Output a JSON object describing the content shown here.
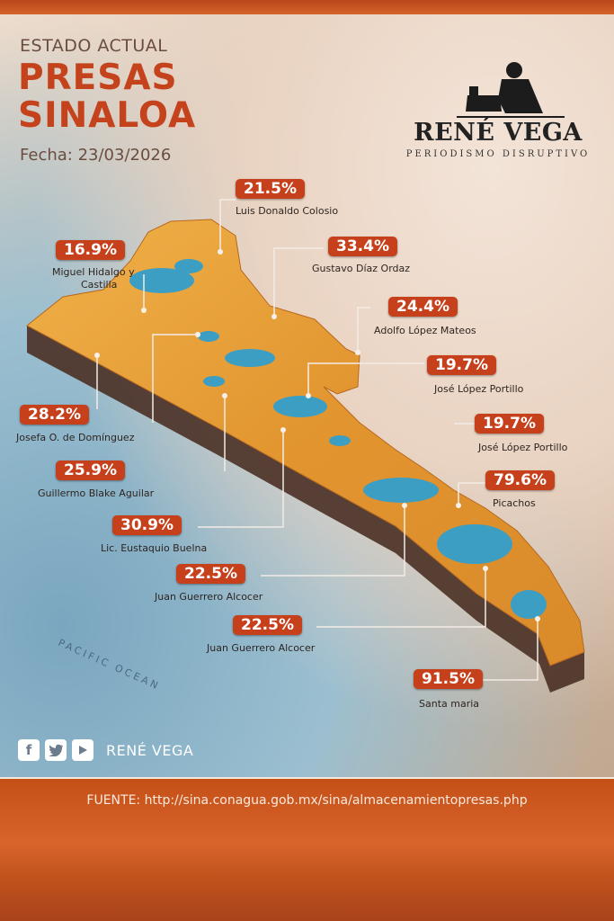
{
  "header": {
    "subtitle": "ESTADO ACTUAL",
    "title_line1": "PRESAS",
    "title_line2": "SINALOA",
    "date": "Fecha: 23/03/2026"
  },
  "brand": {
    "name": "RENÉ VEGA",
    "tagline": "PERIODISMO DISRUPTIVO"
  },
  "map": {
    "ocean_label": "PACIFIC OCEAN",
    "colors": {
      "label_bg": "#c6401b",
      "title": "#c4431d",
      "land": "#e49a34",
      "water": "#3d9ec4"
    }
  },
  "dams": [
    {
      "percent": "21.5%",
      "name": "Luis Donaldo Colosio"
    },
    {
      "percent": "16.9%",
      "name_line1": "Miguel Hidalgo y",
      "name_line2": "Castilla"
    },
    {
      "percent": "33.4%",
      "name": "Gustavo Díaz Ordaz"
    },
    {
      "percent": "24.4%",
      "name": "Adolfo López Mateos"
    },
    {
      "percent": "19.7%",
      "name": "José López Portillo"
    },
    {
      "percent": "28.2%",
      "name": "Josefa O. de Domínguez"
    },
    {
      "percent": "19.7%",
      "name": "José López Portillo"
    },
    {
      "percent": "25.9%",
      "name": "Guillermo Blake Aguilar"
    },
    {
      "percent": "79.6%",
      "name": "Picachos"
    },
    {
      "percent": "30.9%",
      "name": "Lic. Eustaquio Buelna"
    },
    {
      "percent": "22.5%",
      "name": "Juan Guerrero Alcocer"
    },
    {
      "percent": "22.5%",
      "name": "Juan Guerrero Alcocer"
    },
    {
      "percent": "91.5%",
      "name": "Santa maria"
    }
  ],
  "social": {
    "icons": [
      "facebook-icon",
      "twitter-icon",
      "youtube-icon"
    ],
    "handle": "RENÉ VEGA"
  },
  "source": "FUENTE: http://sina.conagua.gob.mx/sina/almacenamientopresas.php"
}
